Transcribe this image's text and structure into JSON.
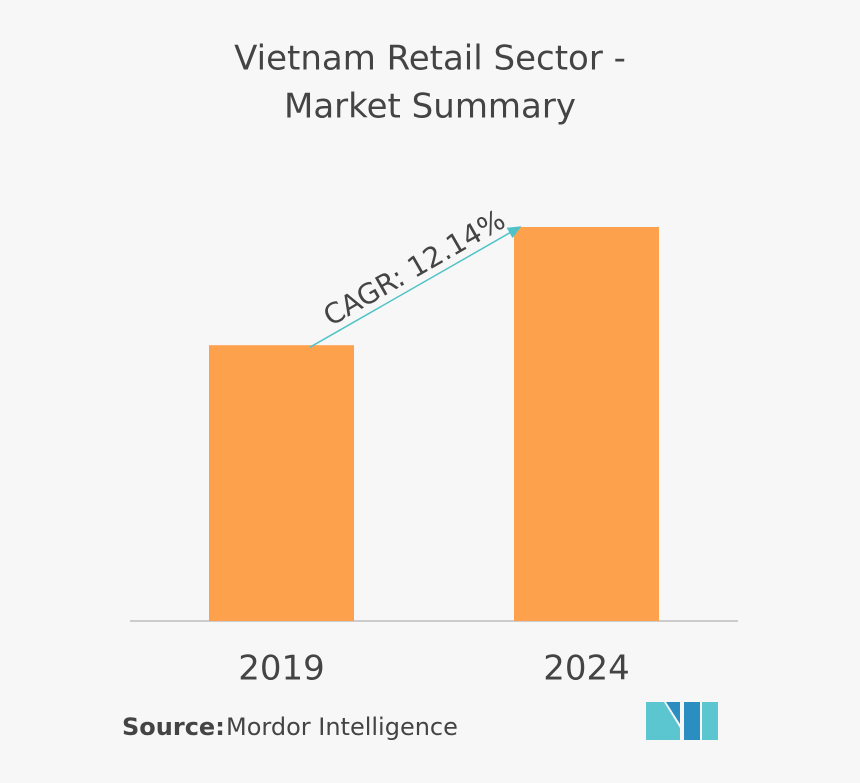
{
  "chart_data": {
    "type": "bar",
    "title": [
      "Vietnam Retail Sector -",
      "Market Summary"
    ],
    "categories": [
      "2019",
      "2024"
    ],
    "values": [
      70,
      100
    ],
    "color": "#fda14c",
    "ylim": [
      0,
      100
    ],
    "annotation": "CAGR: 12.14%",
    "source_label": "Source:",
    "source": "Mordor Intelligence"
  }
}
